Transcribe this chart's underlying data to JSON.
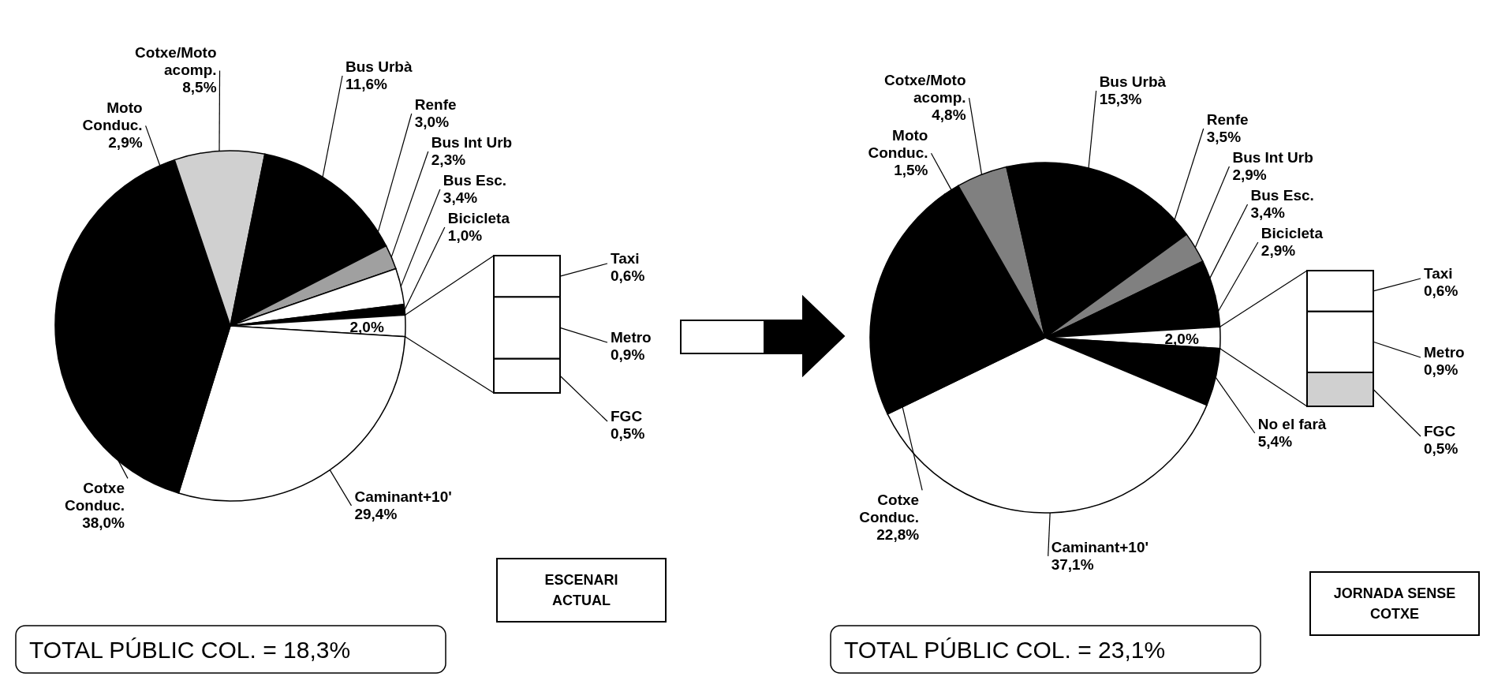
{
  "chart_data": [
    {
      "type": "pie",
      "categories": [
        "Moto Conduc.",
        "Cotxe/Moto acomp.",
        "Bus Urbà",
        "Renfe",
        "Bus Int Urb",
        "Bus Esc.",
        "Bicicleta",
        null,
        "Caminant+10'",
        "Cotxe Conduc."
      ],
      "values": [
        2.9,
        8.5,
        11.6,
        3.0,
        2.3,
        3.4,
        1.0,
        2.0,
        29.4,
        38.0
      ],
      "value_labels": [
        "2,9%",
        "8,5%",
        "11,6%",
        "3,0%",
        "2,3%",
        "3,4%",
        "1,0%",
        "2,0%",
        "29,4%",
        "38,0%"
      ],
      "colors": [
        "#000000",
        "#d0d0d0",
        "#000000",
        "#000000",
        "#a0a0a0",
        "#ffffff",
        "#000000",
        "#ffffff",
        "#ffffff",
        "#000000"
      ],
      "annotations": [
        "TOTAL PÚBLIC COL. = 18,3%"
      ]
    },
    {
      "type": "bar",
      "stacked": true,
      "categories": [
        null
      ],
      "tick_labels": false,
      "series": [
        {
          "name": "FGC",
          "color": "#ffffff",
          "values": [
            0.5
          ],
          "value_labels": [
            "0,5%"
          ]
        },
        {
          "name": "Metro",
          "color": "#ffffff",
          "values": [
            0.9
          ],
          "value_labels": [
            "0,9%"
          ]
        },
        {
          "name": "Taxi",
          "color": "#ffffff",
          "values": [
            0.6
          ],
          "value_labels": [
            "0,6%"
          ]
        }
      ],
      "annotations": [
        "ESCENARI ACTUAL"
      ]
    },
    {
      "type": "pie",
      "categories": [
        "Moto Conduc.",
        "Cotxe/Moto acomp.",
        "Bus Urbà",
        "Renfe",
        "Bus Int Urb",
        "Bus Esc.",
        "Bicicleta",
        null,
        "No el farà",
        "Caminant+10'",
        "Cotxe Conduc."
      ],
      "values": [
        1.5,
        4.8,
        15.3,
        3.5,
        2.9,
        3.4,
        2.9,
        2.0,
        5.4,
        37.1,
        22.8
      ],
      "value_labels": [
        "1,5%",
        "4,8%",
        "15,3%",
        "3,5%",
        "2,9%",
        "3,4%",
        "2,9%",
        "2,0%",
        "5,4%",
        "37,1%",
        "22,8%"
      ],
      "colors": [
        "#000000",
        "#808080",
        "#000000",
        "#000000",
        "#808080",
        "#000000",
        "#000000",
        "#ffffff",
        "#000000",
        "#ffffff",
        "#000000"
      ],
      "annotations": [
        "TOTAL PÚBLIC COL. = 23,1%"
      ]
    },
    {
      "type": "bar",
      "stacked": true,
      "categories": [
        null
      ],
      "tick_labels": false,
      "series": [
        {
          "name": "FGC",
          "color": "#d0d0d0",
          "values": [
            0.5
          ],
          "value_labels": [
            "0,5%"
          ]
        },
        {
          "name": "Metro",
          "color": "#ffffff",
          "values": [
            0.9
          ],
          "value_labels": [
            "0,9%"
          ]
        },
        {
          "name": "Taxi",
          "color": "#ffffff",
          "values": [
            0.6
          ],
          "value_labels": [
            "0,6%"
          ]
        }
      ],
      "annotations": [
        "JORNADA SENSE COTXE"
      ]
    }
  ]
}
